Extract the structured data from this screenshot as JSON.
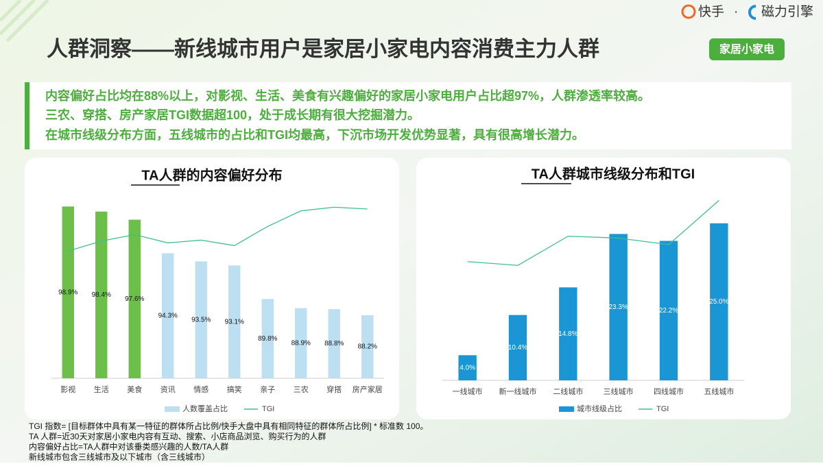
{
  "brand": {
    "kuaishou": "快手",
    "separator": "·",
    "engine": "磁力引擎"
  },
  "header": {
    "title": "人群洞察——新线城市用户是家居小家电内容消费主力人群",
    "tag": "家居小家电"
  },
  "summary": [
    "内容偏好占比均在88%以上，对影视、生活、美食有兴趣偏好的家居小家电用户占比超97%，人群渗透率较高。",
    "三农、穿搭、房产家居TGI数据超100，处于成长期有很大挖掘潜力。",
    "在城市线级分布方面，五线城市的占比和TGI均最高，下沉市场开发优势显著，具有很高增长潜力。"
  ],
  "chart_data": [
    {
      "type": "bar",
      "title": "TA人群的内容偏好分布",
      "categories": [
        "影视",
        "生活",
        "美食",
        "资讯",
        "情感",
        "搞笑",
        "亲子",
        "三农",
        "穿搭",
        "房产家居"
      ],
      "series": [
        {
          "name": "人数覆盖占比",
          "colors": [
            "#6cc04a",
            "#6cc04a",
            "#6cc04a",
            "#bcdff2",
            "#bcdff2",
            "#bcdff2",
            "#bcdff2",
            "#bcdff2",
            "#bcdff2",
            "#bcdff2"
          ],
          "legend_color": "#bcdff2",
          "values": [
            98.9,
            98.4,
            97.6,
            94.3,
            93.5,
            93.1,
            89.8,
            88.9,
            88.8,
            88.2
          ],
          "value_labels": [
            "98.9%",
            "98.4%",
            "97.6%",
            "94.3%",
            "93.5%",
            "93.1%",
            "89.8%",
            "88.9%",
            "88.8%",
            "88.2%"
          ],
          "value_label_color": "#111111"
        },
        {
          "name": "TGI",
          "type": "line",
          "axis": "y2",
          "color": "#3cc08f",
          "values": [
            139,
            150,
            157,
            148,
            151,
            145,
            166,
            183,
            187,
            185
          ]
        }
      ],
      "ylim": [
        82,
        100
      ],
      "y2lim": [
        0,
        200
      ]
    },
    {
      "type": "bar",
      "title": "TA人群城市线级分布和TGI",
      "categories": [
        "一线城市",
        "新一线城市",
        "二线城市",
        "三线城市",
        "四线城市",
        "五线城市"
      ],
      "series": [
        {
          "name": "城市线级占比",
          "colors": [
            "#1a96d4",
            "#1a96d4",
            "#1a96d4",
            "#1a96d4",
            "#1a96d4",
            "#1a96d4"
          ],
          "legend_color": "#1a96d4",
          "values": [
            4.0,
            10.4,
            14.8,
            23.3,
            22.2,
            25.0
          ],
          "value_labels": [
            "4.0%",
            "10.4%",
            "14.8%",
            "23.3%",
            "22.2%",
            "25.0%"
          ],
          "value_label_color": "#ffffff"
        },
        {
          "name": "TGI",
          "type": "line",
          "axis": "y2",
          "color": "#3cc08f",
          "values": [
            126,
            122,
            153,
            151,
            144,
            191
          ]
        }
      ],
      "ylim": [
        0,
        30
      ],
      "y2lim": [
        0,
        200
      ]
    }
  ],
  "footnotes": [
    "TGI 指数= [目标群体中具有某一特征的群体所占比例/快手大盘中具有相同特征的群体所占比例] * 标准数 100。",
    "TA 人群=近30天对家居小家电内容有互动、搜索、小店商品浏览、购买行为的人群",
    "内容偏好占比=TA人群中对该垂类感兴趣的人数/TA人群",
    "新线城市包含三线城市及以下城市（含三线城市）"
  ]
}
